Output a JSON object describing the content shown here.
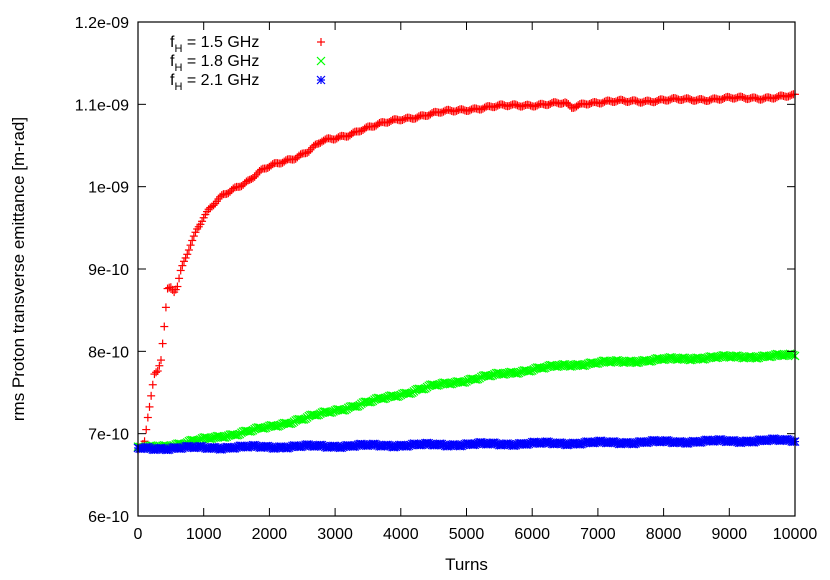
{
  "chart_data": {
    "type": "scatter",
    "title": "",
    "xlabel": "Turns",
    "ylabel": "rms Proton transverse emittance [m-rad]",
    "xlim": [
      0,
      10000
    ],
    "ylim": [
      6e-10,
      1.2e-09
    ],
    "x_ticks": [
      {
        "value": 0,
        "label": "0"
      },
      {
        "value": 1000,
        "label": "1000"
      },
      {
        "value": 2000,
        "label": "2000"
      },
      {
        "value": 3000,
        "label": "3000"
      },
      {
        "value": 4000,
        "label": "4000"
      },
      {
        "value": 5000,
        "label": "5000"
      },
      {
        "value": 6000,
        "label": "6000"
      },
      {
        "value": 7000,
        "label": "7000"
      },
      {
        "value": 8000,
        "label": "8000"
      },
      {
        "value": 9000,
        "label": "9000"
      },
      {
        "value": 10000,
        "label": "10000"
      }
    ],
    "y_ticks": [
      {
        "value": 6e-10,
        "label": "6e-10"
      },
      {
        "value": 7e-10,
        "label": "7e-10"
      },
      {
        "value": 8e-10,
        "label": "8e-10"
      },
      {
        "value": 9e-10,
        "label": "9e-10"
      },
      {
        "value": 1e-09,
        "label": "1e-09"
      },
      {
        "value": 1.1e-09,
        "label": "1.1e-09"
      },
      {
        "value": 1.2e-09,
        "label": "1.2e-09"
      }
    ],
    "grid": false,
    "legend_position": "top-left",
    "series": [
      {
        "legend_main": "f",
        "legend_sub": "H",
        "legend_rest": " = 1.5 GHz",
        "marker": "plus",
        "color": "#ff0000",
        "points": [
          [
            0,
            6.8e-10
          ],
          [
            50,
            6.82e-10
          ],
          [
            100,
            6.9e-10
          ],
          [
            150,
            7.2e-10
          ],
          [
            200,
            7.45e-10
          ],
          [
            250,
            7.7e-10
          ],
          [
            300,
            7.75e-10
          ],
          [
            350,
            7.9e-10
          ],
          [
            400,
            8.3e-10
          ],
          [
            450,
            8.75e-10
          ],
          [
            500,
            8.78e-10
          ],
          [
            550,
            8.74e-10
          ],
          [
            600,
            8.8e-10
          ],
          [
            650,
            8.98e-10
          ],
          [
            700,
            9.1e-10
          ],
          [
            800,
            9.3e-10
          ],
          [
            900,
            9.48e-10
          ],
          [
            1000,
            9.62e-10
          ],
          [
            1100,
            9.73e-10
          ],
          [
            1200,
            9.82e-10
          ],
          [
            1300,
            9.9e-10
          ],
          [
            1400,
            9.95e-10
          ],
          [
            1500,
            1e-09
          ],
          [
            1600,
            1.004e-09
          ],
          [
            1700,
            1.008e-09
          ],
          [
            1800,
            1.015e-09
          ],
          [
            1900,
            1.02e-09
          ],
          [
            2000,
            1.024e-09
          ],
          [
            2200,
            1.03e-09
          ],
          [
            2400,
            1.036e-09
          ],
          [
            2600,
            1.044e-09
          ],
          [
            2800,
            1.055e-09
          ],
          [
            3000,
            1.058e-09
          ],
          [
            3200,
            1.063e-09
          ],
          [
            3400,
            1.07e-09
          ],
          [
            3600,
            1.074e-09
          ],
          [
            3800,
            1.078e-09
          ],
          [
            4000,
            1.082e-09
          ],
          [
            4300,
            1.086e-09
          ],
          [
            4600,
            1.09e-09
          ],
          [
            5000,
            1.094e-09
          ],
          [
            5400,
            1.097e-09
          ],
          [
            5800,
            1.099e-09
          ],
          [
            6200,
            1.1e-09
          ],
          [
            6500,
            1.101e-09
          ],
          [
            6600,
            1.096e-09
          ],
          [
            6800,
            1.102e-09
          ],
          [
            7200,
            1.103e-09
          ],
          [
            7600,
            1.104e-09
          ],
          [
            8000,
            1.105e-09
          ],
          [
            8500,
            1.106e-09
          ],
          [
            9000,
            1.107e-09
          ],
          [
            9500,
            1.108e-09
          ],
          [
            10000,
            1.11e-09
          ]
        ]
      },
      {
        "legend_main": "f",
        "legend_sub": "H",
        "legend_rest": " = 1.8 GHz",
        "marker": "cross",
        "color": "#00ff00",
        "points": [
          [
            0,
            6.82e-10
          ],
          [
            500,
            6.86e-10
          ],
          [
            1000,
            6.93e-10
          ],
          [
            1500,
            7e-10
          ],
          [
            2000,
            7.08e-10
          ],
          [
            2500,
            7.18e-10
          ],
          [
            3000,
            7.28e-10
          ],
          [
            3500,
            7.38e-10
          ],
          [
            4000,
            7.48e-10
          ],
          [
            4500,
            7.58e-10
          ],
          [
            5000,
            7.65e-10
          ],
          [
            5500,
            7.72e-10
          ],
          [
            6000,
            7.78e-10
          ],
          [
            6500,
            7.83e-10
          ],
          [
            7000,
            7.86e-10
          ],
          [
            7500,
            7.88e-10
          ],
          [
            8000,
            7.9e-10
          ],
          [
            8500,
            7.92e-10
          ],
          [
            9000,
            7.93e-10
          ],
          [
            9500,
            7.94e-10
          ],
          [
            10000,
            7.95e-10
          ]
        ]
      },
      {
        "legend_main": "f",
        "legend_sub": "H",
        "legend_rest": " = 2.1 GHz",
        "marker": "star",
        "color": "#0000ff",
        "points": [
          [
            0,
            6.82e-10
          ],
          [
            1000,
            6.83e-10
          ],
          [
            2000,
            6.84e-10
          ],
          [
            3000,
            6.85e-10
          ],
          [
            4000,
            6.86e-10
          ],
          [
            5000,
            6.87e-10
          ],
          [
            6000,
            6.88e-10
          ],
          [
            7000,
            6.89e-10
          ],
          [
            8000,
            6.9e-10
          ],
          [
            9000,
            6.91e-10
          ],
          [
            10000,
            6.92e-10
          ]
        ]
      }
    ]
  }
}
